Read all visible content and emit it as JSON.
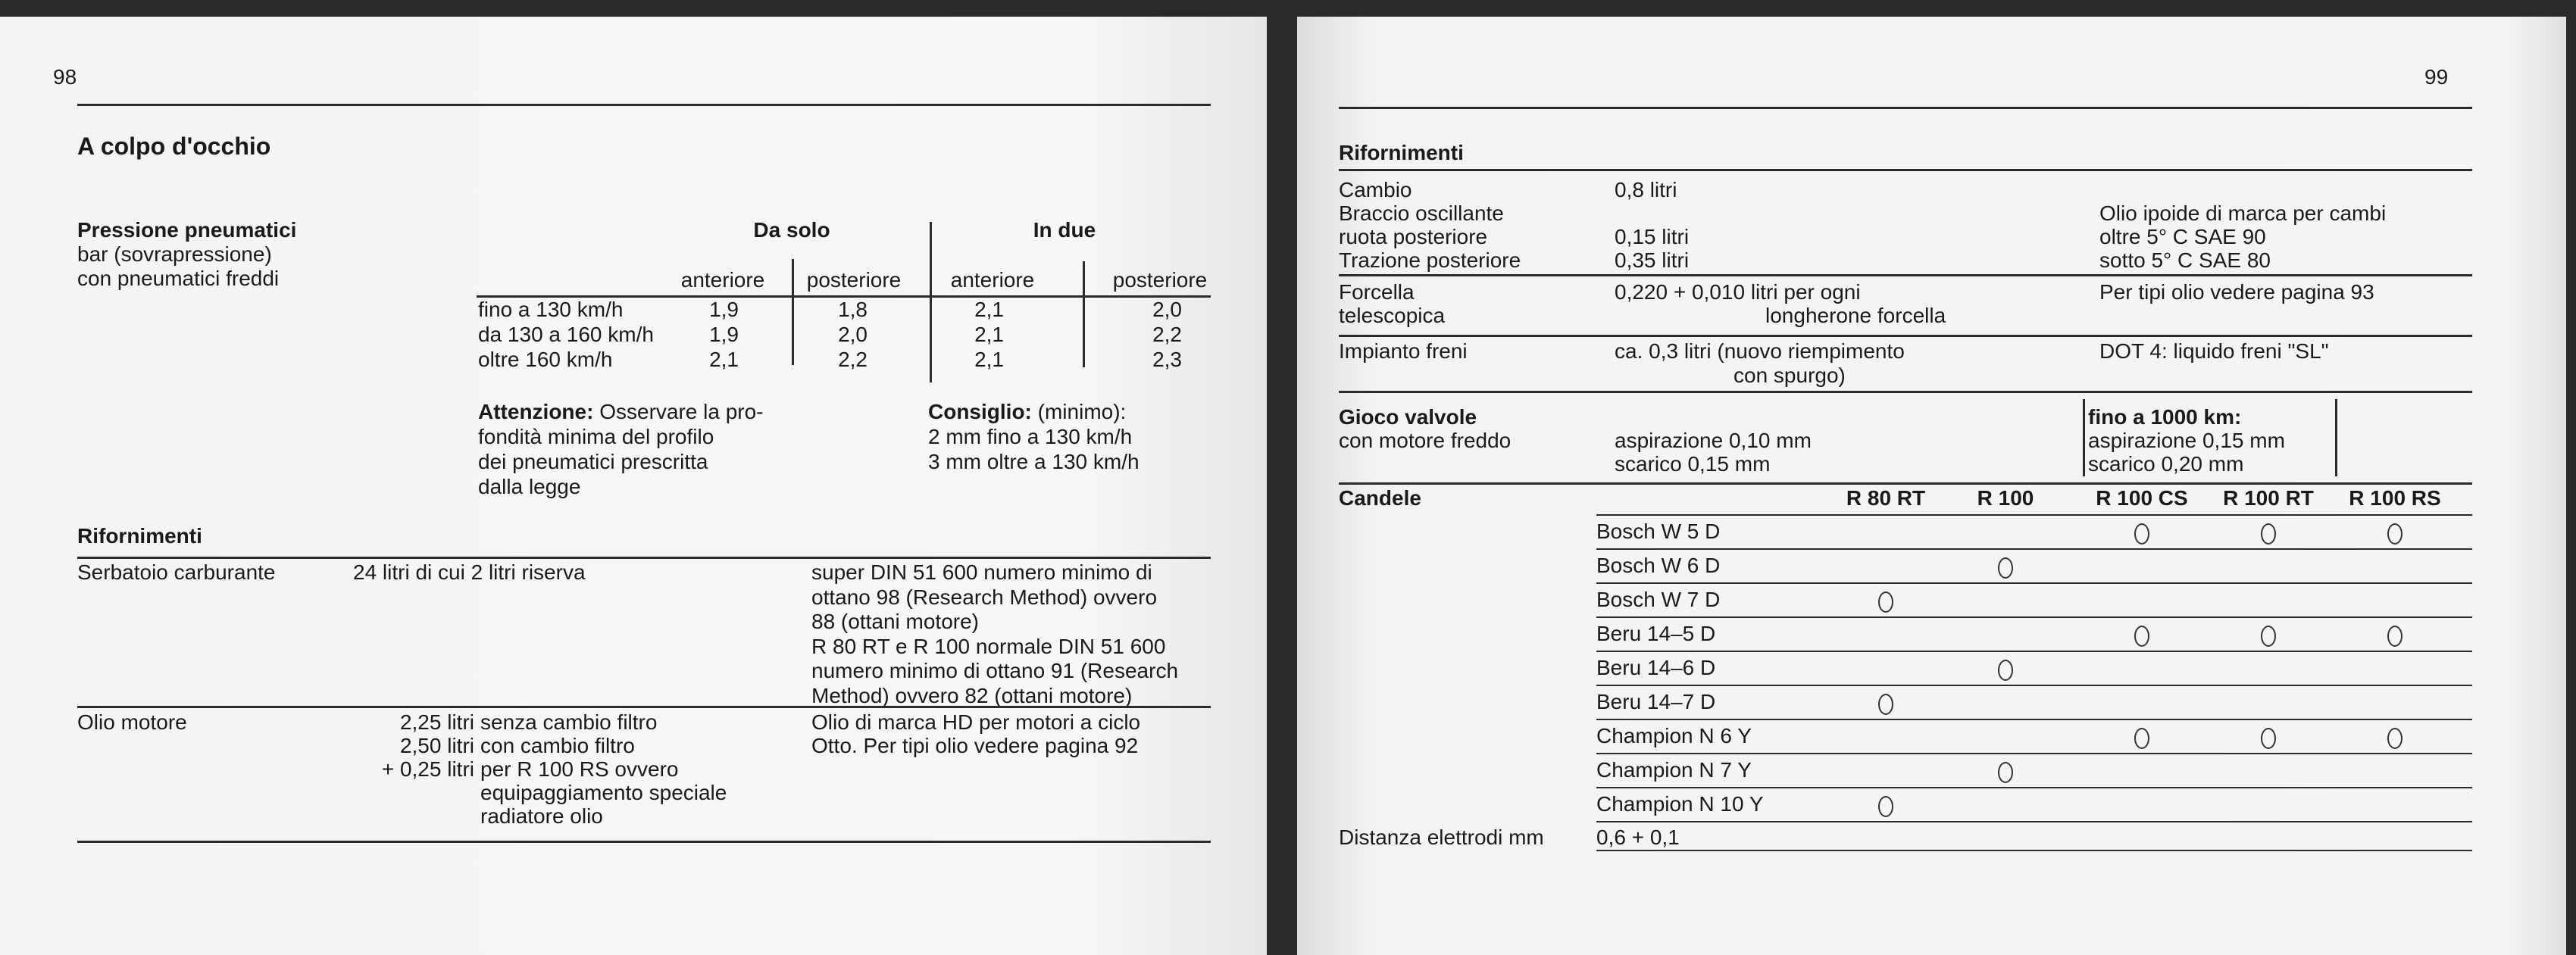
{
  "left_page": {
    "page_number": "98",
    "title": "A colpo d'occhio",
    "tire_pressure": {
      "heading": "Pressione pneumatici",
      "sub1": "bar (sovrapressione)",
      "sub2": "con pneumatici freddi",
      "group_solo": "Da solo",
      "group_due": "In due",
      "columns": [
        "anteriore",
        "posteriore",
        "anteriore",
        "posteriore"
      ],
      "rows": [
        {
          "label": "fino a 130 km/h",
          "values": [
            "1,9",
            "1,8",
            "2,1",
            "2,0"
          ]
        },
        {
          "label": "da 130 a 160 km/h",
          "values": [
            "1,9",
            "2,0",
            "2,1",
            "2,2"
          ]
        },
        {
          "label": "oltre 160 km/h",
          "values": [
            "2,1",
            "2,2",
            "2,1",
            "2,3"
          ]
        }
      ],
      "attention_label": "Attenzione:",
      "attention_lines": [
        " Osservare la pro-",
        "fondità minima del profilo",
        "dei pneumatici prescritta",
        "dalla legge"
      ],
      "advice_label": "Consiglio:",
      "advice_lines": [
        " (minimo):",
        "2 mm fino a 130 km/h",
        "3 mm oltre a 130 km/h"
      ]
    },
    "refuelling": {
      "heading": "Rifornimenti",
      "fuel_label": "Serbatoio carburante",
      "fuel_amount": "24 litri di cui 2 litri riserva",
      "fuel_notes": [
        "super DIN 51 600 numero minimo di",
        "ottano 98 (Research Method) ovvero",
        "88 (ottani motore)",
        "R 80 RT e R 100 normale DIN 51 600",
        "numero minimo di ottano 91 (Research",
        "Method) ovvero 82 (ottani motore)"
      ],
      "oil_label": "Olio motore",
      "oil_amounts": [
        "2,25 litri",
        "2,50 litri",
        "+ 0,25 litri"
      ],
      "oil_texts": [
        "senza cambio filtro",
        "con cambio filtro",
        "per R 100 RS ovvero",
        "equipaggiamento speciale",
        "radiatore olio"
      ],
      "oil_notes": [
        "Olio di marca HD per motori a ciclo",
        "Otto. Per tipi olio vedere pagina 92"
      ]
    }
  },
  "right_page": {
    "page_number": "99",
    "refuelling": {
      "heading": "Rifornimenti",
      "gear_labels": [
        "Cambio",
        "Braccio oscillante",
        "ruota posteriore",
        "Trazione posteriore"
      ],
      "gear_amounts": [
        "0,8   litri",
        "0,15 litri",
        "0,35 litri"
      ],
      "gear_notes": [
        "Olio ipoide di marca per cambi",
        "oltre  5° C    SAE 90",
        "sotto  5° C    SAE 80"
      ],
      "fork_labels": [
        "Forcella",
        "telescopica"
      ],
      "fork_amounts": [
        "0,220 + 0,010 litri per ogni",
        "longherone forcella"
      ],
      "fork_note": "Per tipi olio vedere pagina 93",
      "brake_label": "Impianto freni",
      "brake_amounts": [
        "ca. 0,3 litri (nuovo riempimento",
        "con spurgo)"
      ],
      "brake_note": "DOT 4: liquido freni \"SL\""
    },
    "valves": {
      "heading": "Gioco valvole",
      "sub": "con motore freddo",
      "values": [
        "aspirazione 0,10 mm",
        "scarico 0,15 mm"
      ],
      "break_in_heading": "fino a 1000 km:",
      "break_in_values": [
        "aspirazione 0,15 mm",
        "scarico 0,20 mm"
      ]
    },
    "spark_plugs": {
      "heading": "Candele",
      "models": [
        "R 80 RT",
        "R 100",
        "R 100 CS",
        "R 100 RT",
        "R 100 RS"
      ],
      "rows": [
        {
          "name": "Bosch W 5 D",
          "marks": [
            false,
            false,
            true,
            true,
            true
          ]
        },
        {
          "name": "Bosch W 6 D",
          "marks": [
            false,
            true,
            false,
            false,
            false
          ]
        },
        {
          "name": "Bosch W 7 D",
          "marks": [
            true,
            false,
            false,
            false,
            false
          ]
        },
        {
          "name": "Beru 14–5 D",
          "marks": [
            false,
            false,
            true,
            true,
            true
          ]
        },
        {
          "name": "Beru 14–6 D",
          "marks": [
            false,
            true,
            false,
            false,
            false
          ]
        },
        {
          "name": "Beru 14–7 D",
          "marks": [
            true,
            false,
            false,
            false,
            false
          ]
        },
        {
          "name": "Champion N 6 Y",
          "marks": [
            false,
            false,
            true,
            true,
            true
          ]
        },
        {
          "name": "Champion N 7 Y",
          "marks": [
            false,
            true,
            false,
            false,
            false
          ]
        },
        {
          "name": "Champion N 10 Y",
          "marks": [
            true,
            false,
            false,
            false,
            false
          ]
        }
      ],
      "gap_label": "Distanza elettrodi mm",
      "gap_value": "0,6 + 0,1"
    }
  }
}
